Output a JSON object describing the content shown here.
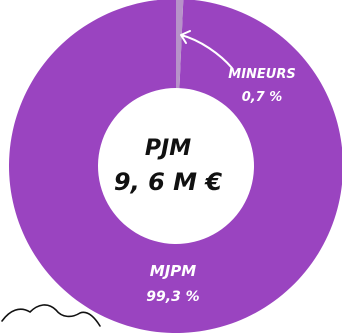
{
  "chart_data": {
    "type": "pie",
    "style": "donut",
    "center_label": {
      "line1": "PJM",
      "line2": "9, 6 M €"
    },
    "slices": [
      {
        "name": "MJPM",
        "label": "MJPM",
        "value_label": "99,3 %",
        "value": 99.3,
        "color": "#9A44C0"
      },
      {
        "name": "MINEURS",
        "label": "MINEURS",
        "value_label": "0,7 %",
        "value": 0.7,
        "color": "#B792C9"
      }
    ],
    "colors": {
      "label_text": "#ffffff",
      "center_text": "#111111",
      "arrow": "#ffffff",
      "squiggle": "#111111"
    }
  }
}
